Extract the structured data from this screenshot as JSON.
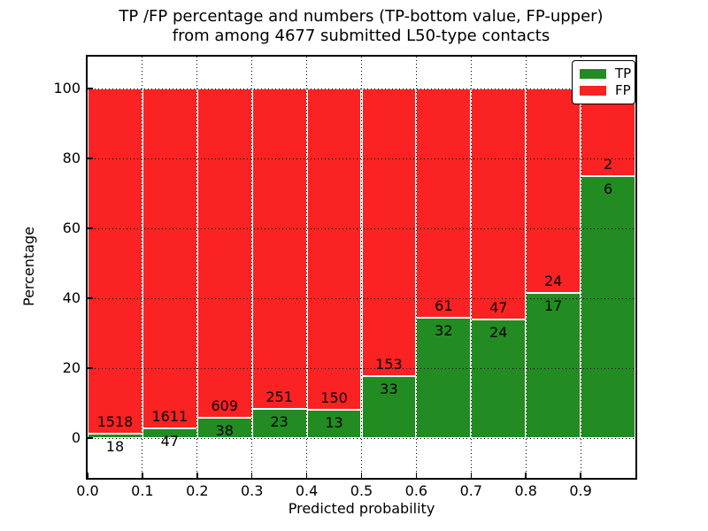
{
  "title": {
    "line1": "TP /FP percentage and numbers (TP-bottom value, FP-upper)",
    "line2": "from among 4677 submitted L50-type contacts"
  },
  "axes": {
    "xlabel": "Predicted probability",
    "ylabel": "Percentage",
    "x_tick_labels": [
      "0.0",
      "0.1",
      "0.2",
      "0.3",
      "0.4",
      "0.5",
      "0.6",
      "0.7",
      "0.8",
      "0.9"
    ],
    "y_tick_labels": [
      "0",
      "20",
      "40",
      "60",
      "80",
      "100"
    ],
    "y_tick_values": [
      0,
      20,
      40,
      60,
      80,
      100
    ]
  },
  "legend": {
    "entries": [
      {
        "label": "TP",
        "color": "#228b22"
      },
      {
        "label": "FP",
        "color": "#fa2222"
      }
    ]
  },
  "colors": {
    "tp_green": "#228b22",
    "fp_red": "#fa2222",
    "grid": "#000000",
    "background": "#ffffff"
  },
  "chart_data": {
    "type": "bar",
    "variant": "stacked-100-percent",
    "title": "TP /FP percentage and numbers (TP-bottom value, FP-upper) from among 4677 submitted L50-type contacts",
    "xlabel": "Predicted probability",
    "ylabel": "Percentage",
    "total_contacts": 4677,
    "bin_edges": [
      0.0,
      0.1,
      0.2,
      0.3,
      0.4,
      0.5,
      0.6,
      0.7,
      0.8,
      0.9,
      1.0
    ],
    "series": [
      {
        "name": "TP",
        "color": "#228b22",
        "counts": [
          18,
          47,
          38,
          23,
          13,
          33,
          32,
          24,
          17,
          6
        ]
      },
      {
        "name": "FP",
        "color": "#fa2222",
        "counts": [
          1518,
          1611,
          609,
          251,
          150,
          153,
          61,
          47,
          24,
          2
        ]
      }
    ],
    "bar_labels": "FP count printed above TP/FP boundary, TP count printed below boundary",
    "xlim": [
      0.0,
      1.0
    ],
    "ylim": [
      -11.4,
      109.1
    ],
    "grid": {
      "style": "dotted",
      "color": "#000000"
    },
    "legend_position": "upper right"
  }
}
